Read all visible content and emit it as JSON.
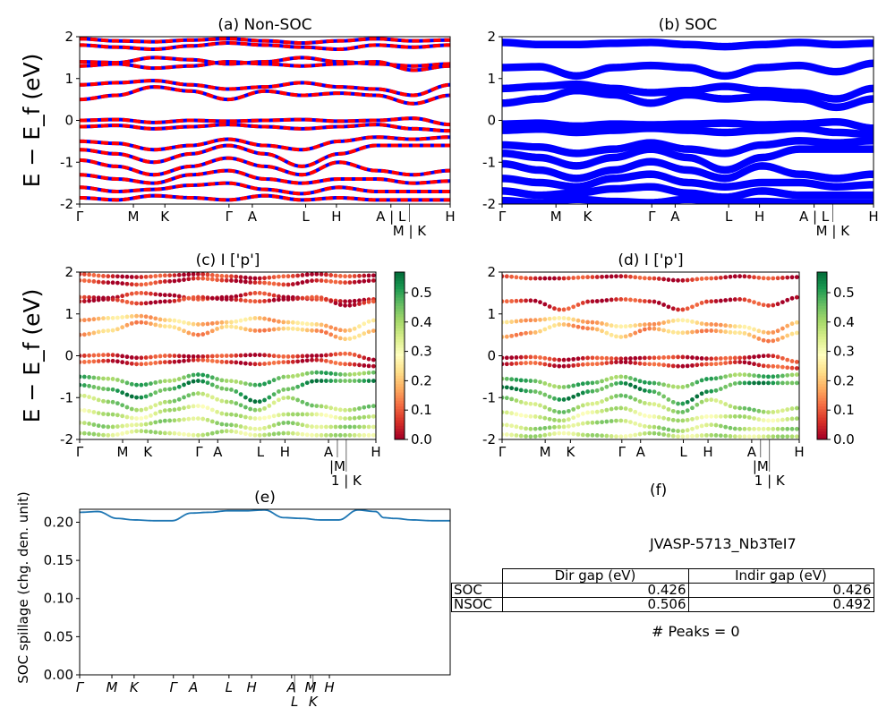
{
  "colors": {
    "nsoc_a": "#ff0000",
    "nsoc_b": "#0000ff",
    "soc": "#0000ff",
    "spillage": "#1f77b4",
    "colormap": "RdYlGn"
  },
  "ylabel": "E − E_f (eV)",
  "chart_data": [
    {
      "panel": "a",
      "type": "line",
      "title": "(a) Non-SOC",
      "ylim": [
        -2,
        2
      ],
      "yticks": [
        -2,
        -1,
        0,
        1,
        2
      ],
      "xlim": [
        0,
        100
      ],
      "xticks": [
        0,
        14.5,
        23,
        40.3,
        46.6,
        61,
        69.3,
        84,
        89,
        100
      ],
      "xtick_labels": [
        "Γ",
        "M",
        "K",
        "Γ",
        "A",
        "L",
        "H",
        "A | L",
        "M | K",
        "H"
      ],
      "k": [
        0,
        10,
        20,
        30,
        40,
        50,
        60,
        70,
        80,
        90,
        100
      ],
      "bands": [
        [
          1.95,
          1.9,
          1.88,
          1.92,
          1.95,
          1.9,
          1.85,
          1.9,
          1.95,
          1.9,
          1.92
        ],
        [
          1.8,
          1.75,
          1.7,
          1.78,
          1.85,
          1.8,
          1.75,
          1.7,
          1.8,
          1.75,
          1.8
        ],
        [
          1.4,
          1.38,
          1.5,
          1.45,
          1.35,
          1.4,
          1.5,
          1.4,
          1.35,
          1.3,
          1.35
        ],
        [
          1.3,
          1.35,
          1.25,
          1.3,
          1.4,
          1.35,
          1.3,
          1.35,
          1.4,
          1.2,
          1.3
        ],
        [
          0.85,
          0.9,
          0.95,
          0.85,
          0.75,
          0.8,
          0.9,
          0.8,
          0.75,
          0.6,
          0.85
        ],
        [
          0.5,
          0.6,
          0.8,
          0.7,
          0.5,
          0.7,
          0.6,
          0.65,
          0.6,
          0.4,
          0.6
        ],
        [
          0.0,
          0.02,
          -0.05,
          0.0,
          -0.02,
          0.0,
          0.02,
          -0.02,
          0.0,
          0.05,
          -0.1
        ],
        [
          -0.15,
          -0.12,
          -0.2,
          -0.15,
          -0.1,
          -0.15,
          -0.2,
          -0.15,
          -0.1,
          -0.2,
          -0.25
        ],
        [
          -0.5,
          -0.55,
          -0.7,
          -0.6,
          -0.45,
          -0.6,
          -0.7,
          -0.5,
          -0.4,
          -0.45,
          -0.4
        ],
        [
          -0.7,
          -0.8,
          -1.0,
          -0.8,
          -0.6,
          -0.8,
          -1.1,
          -0.8,
          -0.6,
          -0.6,
          -0.6
        ],
        [
          -0.95,
          -1.1,
          -1.3,
          -1.1,
          -0.9,
          -1.1,
          -1.3,
          -1.0,
          -1.2,
          -1.3,
          -1.2
        ],
        [
          -1.3,
          -1.4,
          -1.5,
          -1.3,
          -1.2,
          -1.4,
          -1.5,
          -1.4,
          -1.4,
          -1.5,
          -1.45
        ],
        [
          -1.6,
          -1.7,
          -1.65,
          -1.55,
          -1.5,
          -1.65,
          -1.75,
          -1.6,
          -1.7,
          -1.7,
          -1.7
        ],
        [
          -1.85,
          -1.9,
          -1.8,
          -1.85,
          -1.9,
          -1.8,
          -1.9,
          -1.85,
          -1.9,
          -1.9,
          -1.9
        ]
      ]
    },
    {
      "panel": "b",
      "type": "line",
      "title": "(b) SOC",
      "ylim": [
        -2,
        2
      ],
      "yticks": [
        -2,
        -1,
        0,
        1,
        2
      ],
      "xlim": [
        0,
        100
      ],
      "xticks": [
        0,
        14.5,
        23,
        40.3,
        46.6,
        61,
        69.3,
        84,
        89,
        100
      ],
      "xtick_labels": [
        "Γ",
        "M",
        "K",
        "Γ",
        "A",
        "L",
        "H",
        "A | L",
        "M | K",
        "H"
      ],
      "k": [
        0,
        10,
        20,
        30,
        40,
        50,
        60,
        70,
        80,
        90,
        100
      ],
      "bands": [
        [
          1.9,
          1.85,
          1.85,
          1.88,
          1.9,
          1.85,
          1.8,
          1.85,
          1.9,
          1.85,
          1.88
        ],
        [
          1.3,
          1.32,
          1.1,
          1.3,
          1.35,
          1.3,
          1.1,
          1.3,
          1.35,
          1.2,
          1.4
        ],
        [
          0.8,
          0.85,
          0.9,
          0.8,
          0.7,
          0.75,
          0.85,
          0.75,
          0.7,
          0.55,
          0.8
        ],
        [
          0.45,
          0.55,
          0.75,
          0.65,
          0.45,
          0.65,
          0.55,
          0.6,
          0.55,
          0.35,
          0.55
        ],
        [
          -0.05,
          -0.03,
          -0.1,
          -0.05,
          -0.07,
          -0.05,
          -0.03,
          -0.07,
          -0.05,
          0.0,
          -0.15
        ],
        [
          -0.2,
          -0.17,
          -0.25,
          -0.2,
          -0.15,
          -0.2,
          -0.25,
          -0.2,
          -0.15,
          -0.25,
          -0.3
        ],
        [
          -0.55,
          -0.6,
          -0.75,
          -0.65,
          -0.5,
          -0.65,
          -0.75,
          -0.55,
          -0.45,
          -0.5,
          -0.45
        ],
        [
          -0.75,
          -0.85,
          -1.05,
          -0.85,
          -0.65,
          -0.85,
          -1.15,
          -0.85,
          -0.65,
          -0.65,
          -0.65
        ],
        [
          -1.0,
          -1.15,
          -1.35,
          -1.15,
          -0.95,
          -1.15,
          -1.35,
          -1.05,
          -1.25,
          -1.35,
          -1.25
        ],
        [
          -1.35,
          -1.45,
          -1.55,
          -1.35,
          -1.25,
          -1.45,
          -1.55,
          -1.45,
          -1.45,
          -1.55,
          -1.5
        ],
        [
          -1.65,
          -1.75,
          -1.7,
          -1.6,
          -1.55,
          -1.7,
          -1.8,
          -1.65,
          -1.75,
          -1.75,
          -1.75
        ],
        [
          -1.88,
          -1.93,
          -1.85,
          -1.9,
          -1.93,
          -1.85,
          -1.93,
          -1.9,
          -1.93,
          -1.93,
          -1.93
        ]
      ]
    },
    {
      "panel": "c",
      "type": "scatter",
      "title": "(c)  I ['p']",
      "ylim": [
        -2,
        2
      ],
      "yticks": [
        -2,
        -1,
        0,
        1,
        2
      ],
      "xlim": [
        0,
        100
      ],
      "xticks": [
        0,
        14.5,
        23,
        40.3,
        46.6,
        61,
        69.3,
        84,
        87,
        90,
        100
      ],
      "xtick_labels": [
        "Γ",
        "M",
        "K",
        "Γ",
        "A",
        "L",
        "H",
        "A",
        "|M",
        "1 | K",
        "H"
      ],
      "colorbar": {
        "range": [
          0,
          0.57
        ],
        "ticks": [
          "0.0",
          "0.1",
          "0.2",
          "0.3",
          "0.4",
          "0.5"
        ]
      },
      "k": [
        0,
        10,
        20,
        30,
        40,
        50,
        60,
        70,
        80,
        90,
        100
      ],
      "weights": [
        0.05,
        0.05,
        0.04,
        0.04,
        0.2,
        0.18,
        0.05,
        0.06,
        0.45,
        0.5,
        0.4,
        0.35,
        0.38,
        0.36
      ],
      "bands": [
        [
          1.95,
          1.9,
          1.88,
          1.92,
          1.95,
          1.9,
          1.85,
          1.9,
          1.95,
          1.9,
          1.92
        ],
        [
          1.8,
          1.75,
          1.7,
          1.78,
          1.85,
          1.8,
          1.75,
          1.7,
          1.8,
          1.75,
          1.8
        ],
        [
          1.4,
          1.38,
          1.5,
          1.45,
          1.35,
          1.4,
          1.5,
          1.4,
          1.35,
          1.3,
          1.35
        ],
        [
          1.3,
          1.35,
          1.25,
          1.3,
          1.4,
          1.35,
          1.3,
          1.35,
          1.4,
          1.2,
          1.3
        ],
        [
          0.85,
          0.9,
          0.95,
          0.85,
          0.75,
          0.8,
          0.9,
          0.8,
          0.75,
          0.6,
          0.85
        ],
        [
          0.5,
          0.6,
          0.8,
          0.7,
          0.5,
          0.7,
          0.6,
          0.65,
          0.6,
          0.4,
          0.6
        ],
        [
          0.0,
          0.02,
          -0.05,
          0.0,
          -0.02,
          0.0,
          0.02,
          -0.02,
          0.0,
          0.05,
          -0.1
        ],
        [
          -0.15,
          -0.12,
          -0.2,
          -0.15,
          -0.1,
          -0.15,
          -0.2,
          -0.15,
          -0.1,
          -0.2,
          -0.25
        ],
        [
          -0.5,
          -0.55,
          -0.7,
          -0.6,
          -0.45,
          -0.6,
          -0.7,
          -0.5,
          -0.4,
          -0.45,
          -0.4
        ],
        [
          -0.7,
          -0.8,
          -1.0,
          -0.8,
          -0.6,
          -0.8,
          -1.1,
          -0.8,
          -0.6,
          -0.6,
          -0.6
        ],
        [
          -0.95,
          -1.1,
          -1.3,
          -1.1,
          -0.9,
          -1.1,
          -1.3,
          -1.0,
          -1.2,
          -1.3,
          -1.2
        ],
        [
          -1.3,
          -1.4,
          -1.5,
          -1.3,
          -1.2,
          -1.4,
          -1.5,
          -1.4,
          -1.4,
          -1.5,
          -1.45
        ],
        [
          -1.6,
          -1.7,
          -1.65,
          -1.55,
          -1.5,
          -1.65,
          -1.75,
          -1.6,
          -1.7,
          -1.7,
          -1.7
        ],
        [
          -1.85,
          -1.9,
          -1.8,
          -1.85,
          -1.9,
          -1.8,
          -1.9,
          -1.85,
          -1.9,
          -1.9,
          -1.9
        ]
      ]
    },
    {
      "panel": "d",
      "type": "scatter",
      "title": "(d) I ['p']",
      "ylim": [
        -2,
        2
      ],
      "yticks": [
        -2,
        -1,
        0,
        1,
        2
      ],
      "xlim": [
        0,
        100
      ],
      "xticks": [
        0,
        14.5,
        23,
        40.3,
        46.6,
        61,
        69.3,
        84,
        87,
        90,
        100
      ],
      "xtick_labels": [
        "Γ",
        "M",
        "K",
        "Γ",
        "A",
        "L",
        "H",
        "A",
        "|M",
        "1 | K",
        "H"
      ],
      "colorbar": {
        "range": [
          0,
          0.57
        ],
        "ticks": [
          "0.0",
          "0.1",
          "0.2",
          "0.3",
          "0.4",
          "0.5"
        ]
      },
      "k": [
        0,
        10,
        20,
        30,
        40,
        50,
        60,
        70,
        80,
        90,
        100
      ],
      "weights": [
        0.05,
        0.05,
        0.2,
        0.18,
        0.05,
        0.06,
        0.45,
        0.5,
        0.4,
        0.35,
        0.38,
        0.36
      ],
      "bands": [
        [
          1.9,
          1.85,
          1.85,
          1.88,
          1.9,
          1.85,
          1.8,
          1.85,
          1.9,
          1.85,
          1.88
        ],
        [
          1.3,
          1.32,
          1.1,
          1.3,
          1.35,
          1.3,
          1.1,
          1.3,
          1.35,
          1.2,
          1.4
        ],
        [
          0.8,
          0.85,
          0.9,
          0.8,
          0.7,
          0.75,
          0.85,
          0.75,
          0.7,
          0.55,
          0.8
        ],
        [
          0.45,
          0.55,
          0.75,
          0.65,
          0.45,
          0.65,
          0.55,
          0.6,
          0.55,
          0.35,
          0.55
        ],
        [
          -0.05,
          -0.03,
          -0.1,
          -0.05,
          -0.07,
          -0.05,
          -0.03,
          -0.07,
          -0.05,
          0.0,
          -0.15
        ],
        [
          -0.2,
          -0.17,
          -0.25,
          -0.2,
          -0.15,
          -0.2,
          -0.25,
          -0.2,
          -0.15,
          -0.25,
          -0.3
        ],
        [
          -0.55,
          -0.6,
          -0.75,
          -0.65,
          -0.5,
          -0.65,
          -0.75,
          -0.55,
          -0.45,
          -0.5,
          -0.45
        ],
        [
          -0.75,
          -0.85,
          -1.05,
          -0.85,
          -0.65,
          -0.85,
          -1.15,
          -0.85,
          -0.65,
          -0.65,
          -0.65
        ],
        [
          -1.0,
          -1.15,
          -1.35,
          -1.15,
          -0.95,
          -1.15,
          -1.35,
          -1.05,
          -1.25,
          -1.35,
          -1.25
        ],
        [
          -1.35,
          -1.45,
          -1.55,
          -1.35,
          -1.25,
          -1.45,
          -1.55,
          -1.45,
          -1.45,
          -1.55,
          -1.5
        ],
        [
          -1.65,
          -1.75,
          -1.7,
          -1.6,
          -1.55,
          -1.7,
          -1.8,
          -1.65,
          -1.75,
          -1.75,
          -1.75
        ],
        [
          -1.88,
          -1.93,
          -1.85,
          -1.9,
          -1.93,
          -1.85,
          -1.93,
          -1.9,
          -1.93,
          -1.93,
          -1.93
        ]
      ]
    },
    {
      "panel": "e",
      "type": "line",
      "title": "(e)",
      "ylabel": "SOC spillage (chg. den. unit)",
      "ylim": [
        0,
        0.217
      ],
      "yticks": [
        "0.00",
        "0.05",
        "0.10",
        "0.15",
        "0.20"
      ],
      "xlim": [
        0,
        100
      ],
      "xticks": [
        0,
        8.7,
        14.7,
        25.3,
        30.7,
        40.3,
        46.4,
        57.2,
        58,
        62.3,
        63,
        67.4
      ],
      "xtick_labels": [
        "Γ",
        "M",
        "K",
        "Γ",
        "A",
        "L",
        "H",
        "A",
        "L",
        "M",
        "K",
        "H"
      ],
      "x": [
        0,
        5,
        10,
        15,
        20,
        25,
        30,
        35,
        40,
        45,
        50,
        55,
        60,
        65,
        70,
        75,
        80,
        82,
        85,
        90,
        95,
        100
      ],
      "y": [
        0.213,
        0.214,
        0.205,
        0.203,
        0.202,
        0.202,
        0.212,
        0.213,
        0.215,
        0.215,
        0.216,
        0.206,
        0.205,
        0.203,
        0.203,
        0.216,
        0.214,
        0.206,
        0.205,
        0.203,
        0.202,
        0.202
      ]
    }
  ],
  "panel_f": {
    "title": "(f)",
    "material": "JVASP-5713_Nb3TeI7",
    "table": {
      "headers": [
        "",
        "Dir gap (eV)",
        "Indir gap (eV)"
      ],
      "rows": [
        [
          "SOC",
          "0.426",
          "0.426"
        ],
        [
          "NSOC",
          "0.506",
          "0.492"
        ]
      ]
    },
    "peaks": "# Peaks = 0"
  }
}
